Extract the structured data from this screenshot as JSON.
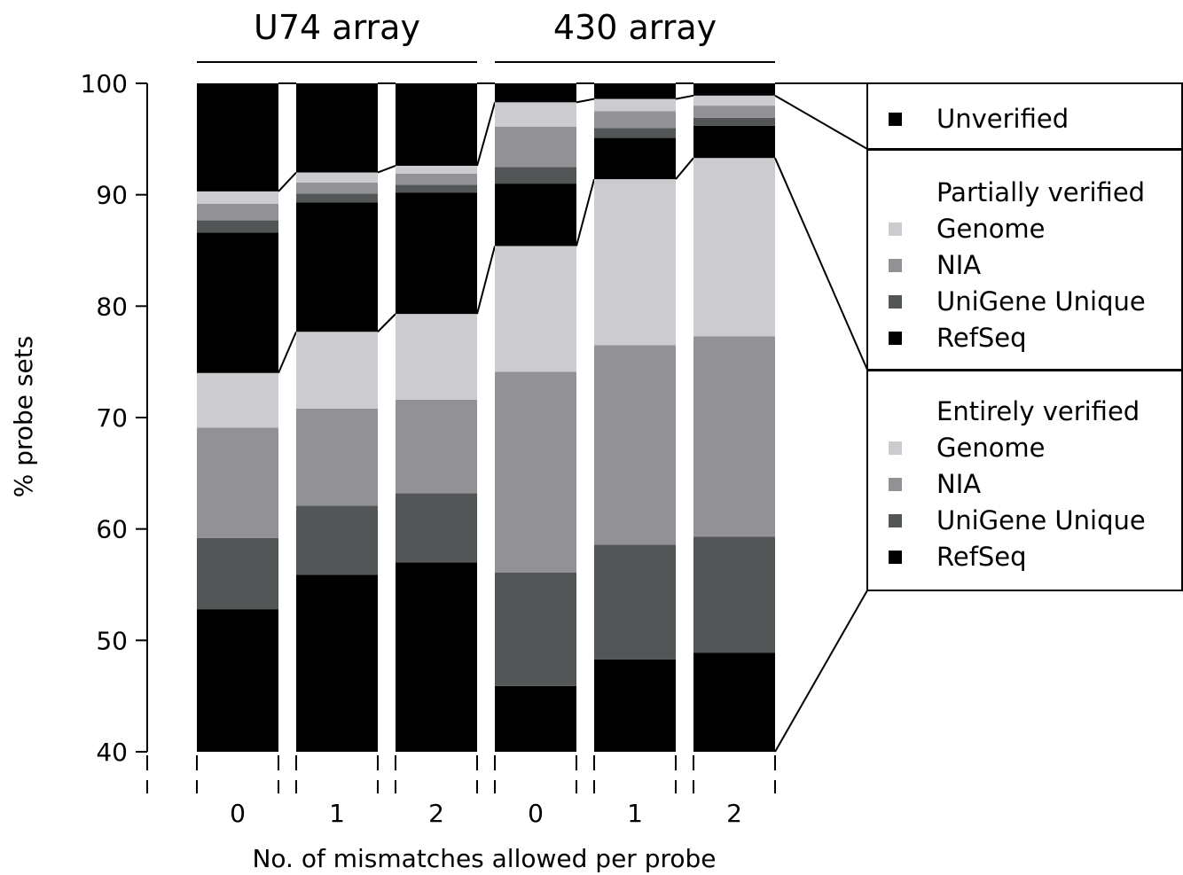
{
  "chart_data": {
    "type": "bar",
    "stacked": true,
    "ylabel": "% probe sets",
    "xlabel": "No. of mismatches allowed per probe",
    "ylim": [
      40,
      100
    ],
    "yticks": [
      "40",
      "50",
      "60",
      "70",
      "80",
      "90",
      "100"
    ],
    "ytick_values": [
      40,
      50,
      60,
      70,
      80,
      90,
      100
    ],
    "groups": [
      {
        "label": "U74 array",
        "categories": [
          "0",
          "1",
          "2"
        ]
      },
      {
        "label": "430 array",
        "categories": [
          "0",
          "1",
          "2"
        ]
      }
    ],
    "segment_colors": {
      "entire_refseq": "#000000",
      "entire_unigene": "#525656",
      "entire_nia": "#929296",
      "entire_genome": "#cbcbd0",
      "partial_refseq": "#000000",
      "partial_unigene": "#525656",
      "partial_nia": "#929296",
      "partial_genome": "#cbcbd0",
      "unverified": "#000000"
    },
    "bars": [
      {
        "group": "U74 array",
        "category": "0",
        "cumulative_tops": [
          52.8,
          59.2,
          69.1,
          74.0,
          86.6,
          87.7,
          89.2,
          90.3,
          100
        ]
      },
      {
        "group": "U74 array",
        "category": "1",
        "cumulative_tops": [
          55.9,
          62.1,
          70.8,
          77.7,
          89.3,
          90.1,
          91.1,
          92.0,
          100
        ]
      },
      {
        "group": "U74 array",
        "category": "2",
        "cumulative_tops": [
          57.0,
          63.2,
          71.6,
          79.3,
          90.2,
          90.9,
          91.9,
          92.6,
          100
        ]
      },
      {
        "group": "430 array",
        "category": "0",
        "cumulative_tops": [
          45.9,
          56.1,
          74.1,
          85.4,
          91.0,
          92.5,
          96.1,
          98.3,
          100
        ]
      },
      {
        "group": "430 array",
        "category": "1",
        "cumulative_tops": [
          48.3,
          58.6,
          76.5,
          91.4,
          95.1,
          96.0,
          97.5,
          98.6,
          100
        ]
      },
      {
        "group": "430 array",
        "category": "2",
        "cumulative_tops": [
          48.9,
          59.3,
          77.3,
          93.3,
          96.2,
          96.9,
          98.0,
          98.9,
          100
        ]
      }
    ],
    "legend": {
      "position": "right",
      "sections": [
        {
          "title": "",
          "items": [
            {
              "label": "Unverified",
              "color": "#000000"
            }
          ]
        },
        {
          "title": "Partially verified",
          "items": [
            {
              "label": "Genome",
              "color": "#cbcbd0"
            },
            {
              "label": "NIA",
              "color": "#929296"
            },
            {
              "label": "UniGene Unique",
              "color": "#525656"
            },
            {
              "label": "RefSeq",
              "color": "#000000"
            }
          ]
        },
        {
          "title": "Entirely verified",
          "items": [
            {
              "label": "Genome",
              "color": "#cbcbd0"
            },
            {
              "label": "NIA",
              "color": "#929296"
            },
            {
              "label": "UniGene Unique",
              "color": "#525656"
            },
            {
              "label": "RefSeq",
              "color": "#000000"
            }
          ]
        }
      ]
    }
  }
}
